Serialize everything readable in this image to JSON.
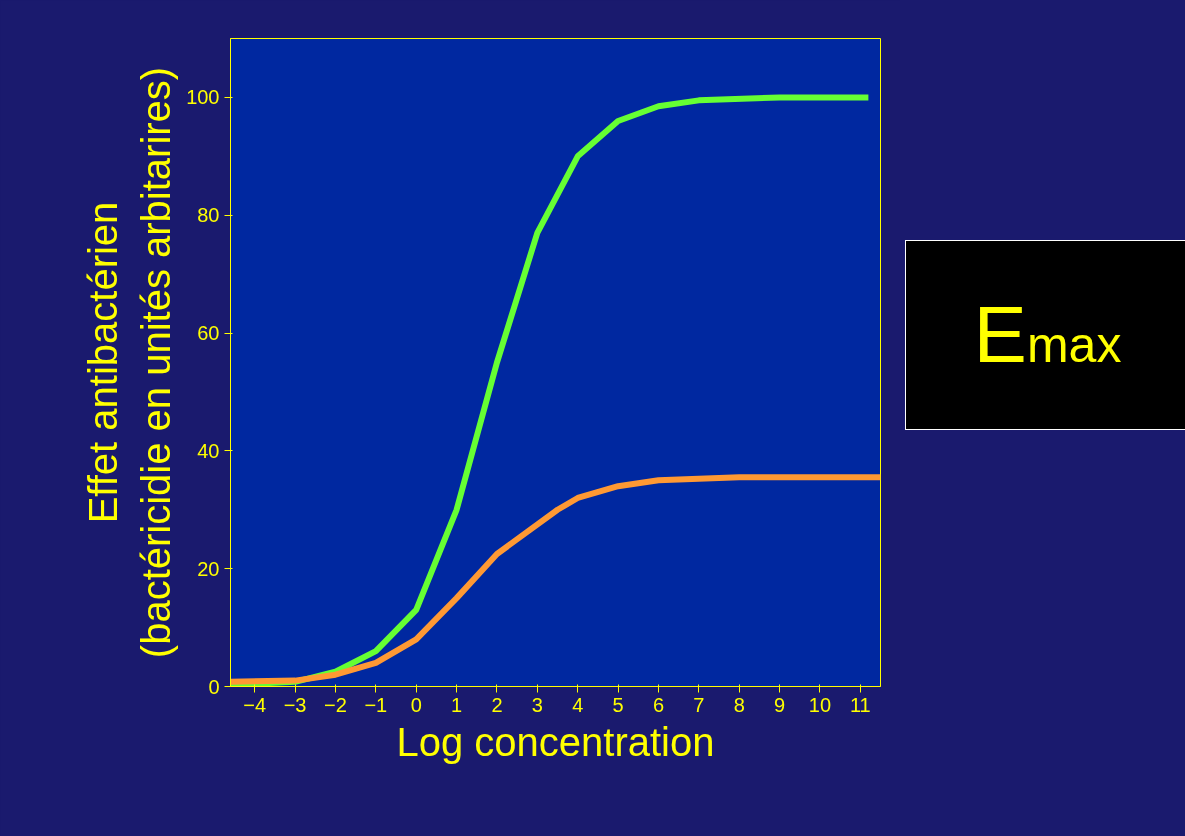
{
  "chart_data": {
    "type": "line",
    "xlabel": "Log concentration",
    "ylabel": "Effet antibactérien\n(bactéricidie en unités arbitarires)",
    "annotations": [
      "E$_{max}$"
    ],
    "xlim": [
      -4.6,
      11.5
    ],
    "ylim": [
      0,
      110
    ],
    "xticks": [
      -4,
      -3,
      -2,
      -1,
      0,
      1,
      2,
      3,
      4,
      5,
      6,
      7,
      8,
      9,
      10,
      11
    ],
    "yticks": [
      0,
      20,
      40,
      60,
      80,
      100
    ],
    "grid": false,
    "marker": "none",
    "line_style": "solid",
    "series": [
      {
        "color": "#66ff33",
        "x": [
          -4.6,
          -3,
          -2,
          -1,
          0,
          1,
          2,
          3,
          4,
          5,
          6,
          7,
          9,
          11.2
        ],
        "values": [
          0.3,
          0.8,
          2.5,
          6,
          13,
          30,
          55,
          77,
          90,
          96,
          98.5,
          99.5,
          100,
          100
        ]
      },
      {
        "color": "#ff9933",
        "x": [
          -4.6,
          -3,
          -2,
          -1,
          0,
          1,
          2,
          2.8,
          3.5,
          4,
          5,
          6,
          8,
          11.5
        ],
        "values": [
          0.8,
          1,
          2,
          4,
          8,
          15,
          22.5,
          26.5,
          30,
          32,
          34,
          35,
          35.5,
          35.5
        ]
      }
    ]
  }
}
